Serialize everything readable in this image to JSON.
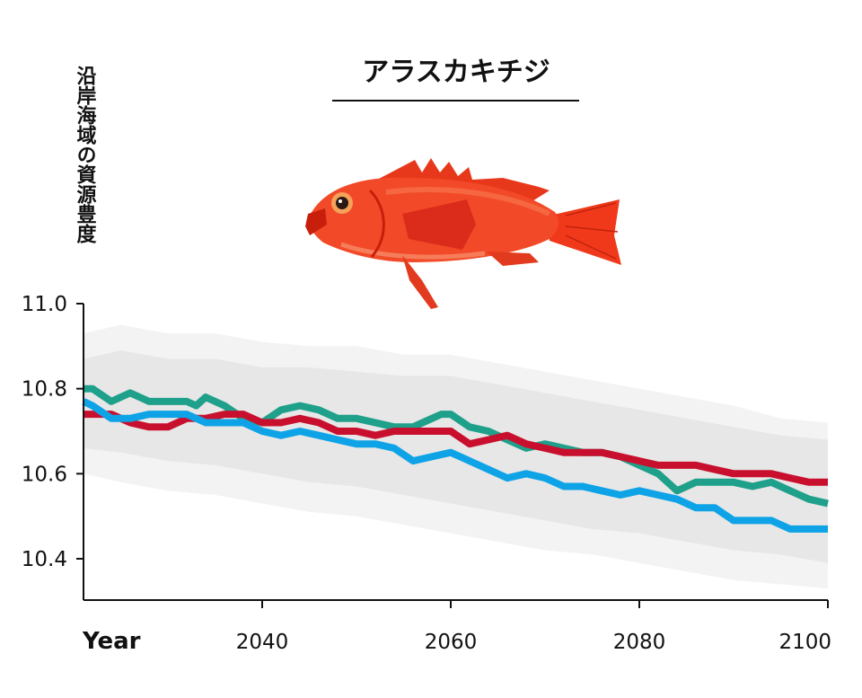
{
  "chart_data": {
    "type": "line",
    "title": "アラスカキチジ",
    "ylabel": "沿岸海域の資源豊度",
    "xlabel": "Year",
    "xlim": [
      2020,
      2101
    ],
    "ylim": [
      10.3,
      11.0
    ],
    "xticks": [
      2040,
      2060,
      2080,
      2100
    ],
    "yticks": [
      10.4,
      10.6,
      10.8,
      11.0
    ],
    "ytick_labels": [
      "10.4",
      "10.6",
      "10.8",
      "11.0"
    ],
    "xtick_labels": [
      "2040",
      "2060",
      "2080",
      "2100"
    ],
    "grid": false,
    "series": [
      {
        "color": "#1fa08a",
        "x": [
          2020,
          2022,
          2024,
          2026,
          2028,
          2030,
          2032,
          2033,
          2034,
          2036,
          2038,
          2040,
          2042,
          2044,
          2046,
          2048,
          2050,
          2052,
          2054,
          2056,
          2058,
          2059,
          2060,
          2062,
          2064,
          2066,
          2068,
          2070,
          2072,
          2074,
          2076,
          2078,
          2080,
          2082,
          2084,
          2086,
          2088,
          2090,
          2092,
          2094,
          2096,
          2098,
          2100
        ],
        "y": [
          10.8,
          10.8,
          10.77,
          10.79,
          10.77,
          10.77,
          10.77,
          10.76,
          10.78,
          10.76,
          10.73,
          10.72,
          10.75,
          10.76,
          10.75,
          10.73,
          10.73,
          10.72,
          10.71,
          10.71,
          10.73,
          10.74,
          10.74,
          10.71,
          10.7,
          10.68,
          10.66,
          10.67,
          10.66,
          10.65,
          10.65,
          10.64,
          10.62,
          10.6,
          10.56,
          10.58,
          10.58,
          10.58,
          10.57,
          10.58,
          10.56,
          10.54,
          10.53
        ]
      },
      {
        "color": "#c8102e",
        "x": [
          2020,
          2022,
          2024,
          2026,
          2028,
          2030,
          2032,
          2034,
          2036,
          2038,
          2040,
          2042,
          2044,
          2046,
          2048,
          2050,
          2052,
          2054,
          2056,
          2058,
          2060,
          2062,
          2064,
          2066,
          2068,
          2070,
          2072,
          2074,
          2076,
          2078,
          2080,
          2082,
          2084,
          2086,
          2088,
          2090,
          2092,
          2094,
          2096,
          2098,
          2100
        ],
        "y": [
          10.74,
          10.74,
          10.74,
          10.72,
          10.71,
          10.71,
          10.73,
          10.73,
          10.74,
          10.74,
          10.72,
          10.72,
          10.73,
          10.72,
          10.7,
          10.7,
          10.69,
          10.7,
          10.7,
          10.7,
          10.7,
          10.67,
          10.68,
          10.69,
          10.67,
          10.66,
          10.65,
          10.65,
          10.65,
          10.64,
          10.63,
          10.62,
          10.62,
          10.62,
          10.61,
          10.6,
          10.6,
          10.6,
          10.59,
          10.58,
          10.58
        ]
      },
      {
        "color": "#0ea3e6",
        "x": [
          2020,
          2021,
          2022,
          2024,
          2026,
          2028,
          2030,
          2032,
          2034,
          2036,
          2038,
          2040,
          2042,
          2044,
          2046,
          2048,
          2050,
          2052,
          2054,
          2056,
          2058,
          2060,
          2062,
          2064,
          2066,
          2068,
          2070,
          2072,
          2074,
          2076,
          2078,
          2080,
          2082,
          2084,
          2086,
          2088,
          2090,
          2092,
          2094,
          2096,
          2098,
          2100
        ],
        "y": [
          10.77,
          10.77,
          10.76,
          10.73,
          10.73,
          10.74,
          10.74,
          10.74,
          10.72,
          10.72,
          10.72,
          10.7,
          10.69,
          10.7,
          10.69,
          10.68,
          10.67,
          10.67,
          10.66,
          10.63,
          10.64,
          10.65,
          10.63,
          10.61,
          10.59,
          10.6,
          10.59,
          10.57,
          10.57,
          10.56,
          10.55,
          10.56,
          10.55,
          10.54,
          10.52,
          10.52,
          10.49,
          10.49,
          10.49,
          10.47,
          10.47,
          10.47
        ]
      }
    ],
    "uncertainty_bands": [
      {
        "color": "#f3f3f3",
        "x": [
          2020,
          2025,
          2030,
          2035,
          2040,
          2045,
          2050,
          2055,
          2060,
          2065,
          2070,
          2075,
          2080,
          2085,
          2090,
          2095,
          2100
        ],
        "upper": [
          10.93,
          10.95,
          10.93,
          10.93,
          10.91,
          10.9,
          10.9,
          10.88,
          10.88,
          10.86,
          10.84,
          10.82,
          10.8,
          10.78,
          10.76,
          10.73,
          10.72
        ],
        "lower": [
          10.6,
          10.58,
          10.56,
          10.55,
          10.53,
          10.51,
          10.5,
          10.48,
          10.46,
          10.44,
          10.42,
          10.41,
          10.39,
          10.37,
          10.35,
          10.34,
          10.33
        ]
      },
      {
        "color": "#e7e7e7",
        "x": [
          2020,
          2025,
          2030,
          2035,
          2040,
          2045,
          2050,
          2055,
          2060,
          2065,
          2070,
          2075,
          2080,
          2085,
          2090,
          2095,
          2100
        ],
        "upper": [
          10.87,
          10.89,
          10.87,
          10.87,
          10.85,
          10.85,
          10.84,
          10.83,
          10.83,
          10.81,
          10.79,
          10.77,
          10.75,
          10.73,
          10.71,
          10.69,
          10.68
        ],
        "lower": [
          10.66,
          10.65,
          10.63,
          10.62,
          10.6,
          10.58,
          10.57,
          10.55,
          10.53,
          10.51,
          10.49,
          10.47,
          10.46,
          10.44,
          10.42,
          10.41,
          10.39
        ]
      }
    ]
  }
}
